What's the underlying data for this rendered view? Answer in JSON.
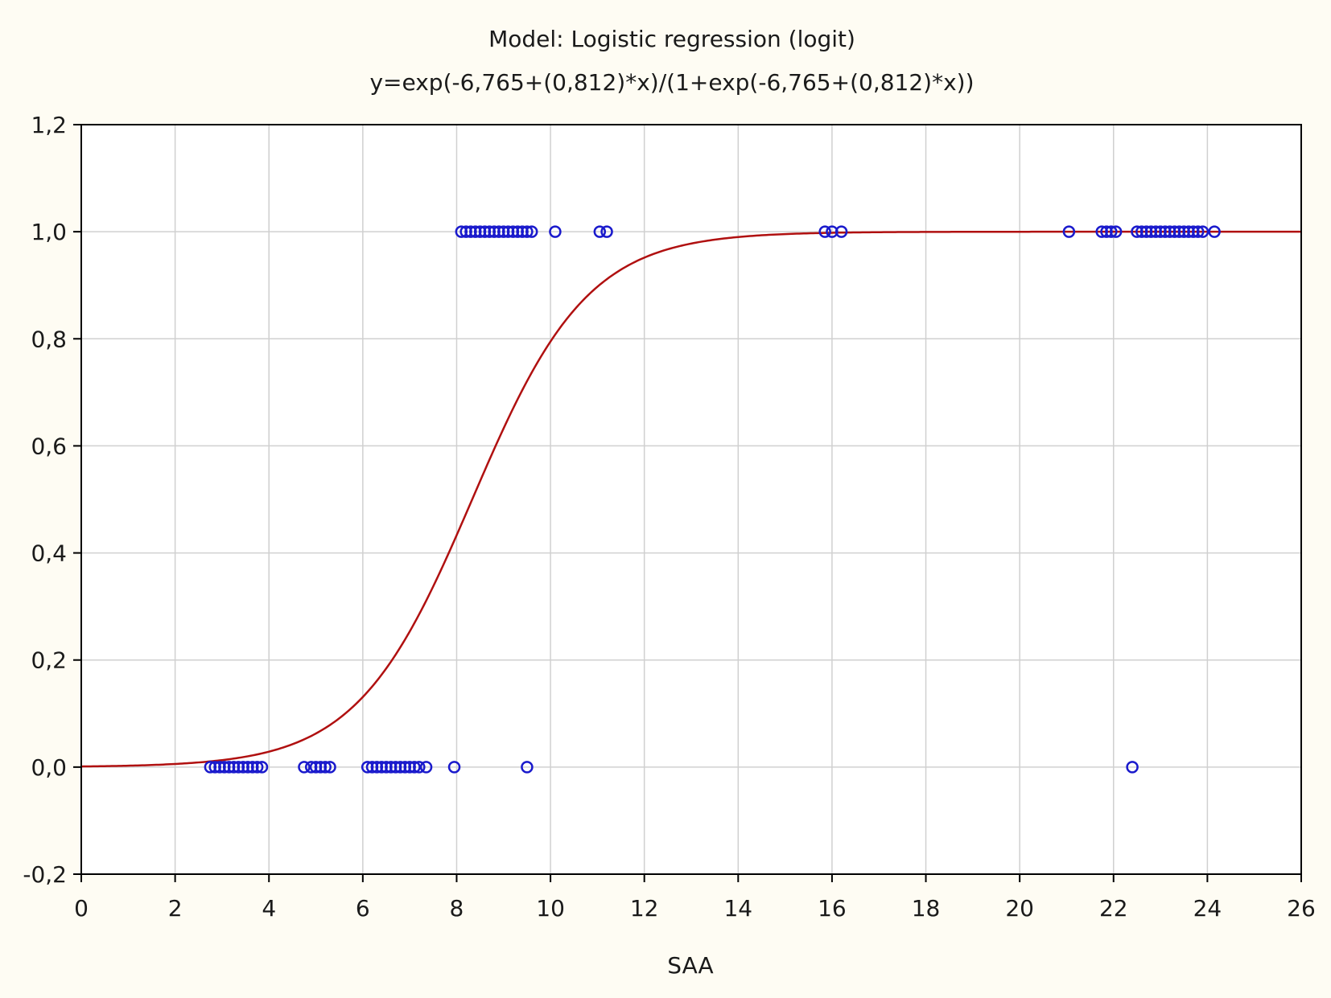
{
  "chart_data": {
    "type": "scatter",
    "title": "Model: Logistic regression (logit)",
    "subtitle": "y=exp(-6,765+(0,812)*x)/(1+exp(-6,765+(0,812)*x))",
    "xlabel": "SAA",
    "ylabel": "",
    "xlim": [
      0,
      26
    ],
    "ylim": [
      -0.2,
      1.2
    ],
    "grid": true,
    "x_ticks": [
      "0",
      "2",
      "4",
      "6",
      "8",
      "10",
      "12",
      "14",
      "16",
      "18",
      "20",
      "22",
      "24",
      "26"
    ],
    "y_ticks": [
      "-0,2",
      "0,0",
      "0,2",
      "0,4",
      "0,6",
      "0,8",
      "1,0",
      "1,2"
    ],
    "x_tick_values": [
      0,
      2,
      4,
      6,
      8,
      10,
      12,
      14,
      16,
      18,
      20,
      22,
      24,
      26
    ],
    "y_tick_values": [
      -0.2,
      0,
      0.2,
      0.4,
      0.6,
      0.8,
      1.0,
      1.2
    ],
    "model": {
      "intercept": -6.765,
      "slope": 0.812
    },
    "series": [
      {
        "kind": "observed",
        "y": 0,
        "x": [
          2.75,
          2.85,
          2.95,
          3.05,
          3.15,
          3.25,
          3.35,
          3.45,
          3.55,
          3.65,
          3.75,
          3.85,
          4.75,
          4.9,
          5.0,
          5.1,
          5.2,
          5.3,
          6.1,
          6.2,
          6.3,
          6.4,
          6.5,
          6.6,
          6.7,
          6.8,
          6.9,
          7.0,
          7.1,
          7.2,
          7.35,
          7.95,
          9.5,
          22.4
        ]
      },
      {
        "kind": "observed",
        "y": 1,
        "x": [
          8.1,
          8.2,
          8.3,
          8.4,
          8.5,
          8.6,
          8.7,
          8.8,
          8.9,
          9.0,
          9.1,
          9.2,
          9.3,
          9.4,
          9.5,
          9.6,
          10.1,
          11.05,
          11.2,
          15.85,
          16.0,
          16.2,
          21.05,
          21.75,
          21.85,
          21.95,
          22.05,
          22.5,
          22.6,
          22.7,
          22.8,
          22.9,
          23.0,
          23.1,
          23.2,
          23.3,
          23.4,
          23.5,
          23.6,
          23.7,
          23.8,
          23.9,
          24.15
        ]
      }
    ],
    "colors": {
      "background": "#fefcf3",
      "grid": "#d0d0d0",
      "axis": "#000000",
      "points": "#1a1acc",
      "curve": "#b01010",
      "text": "#1a1a1a"
    }
  }
}
